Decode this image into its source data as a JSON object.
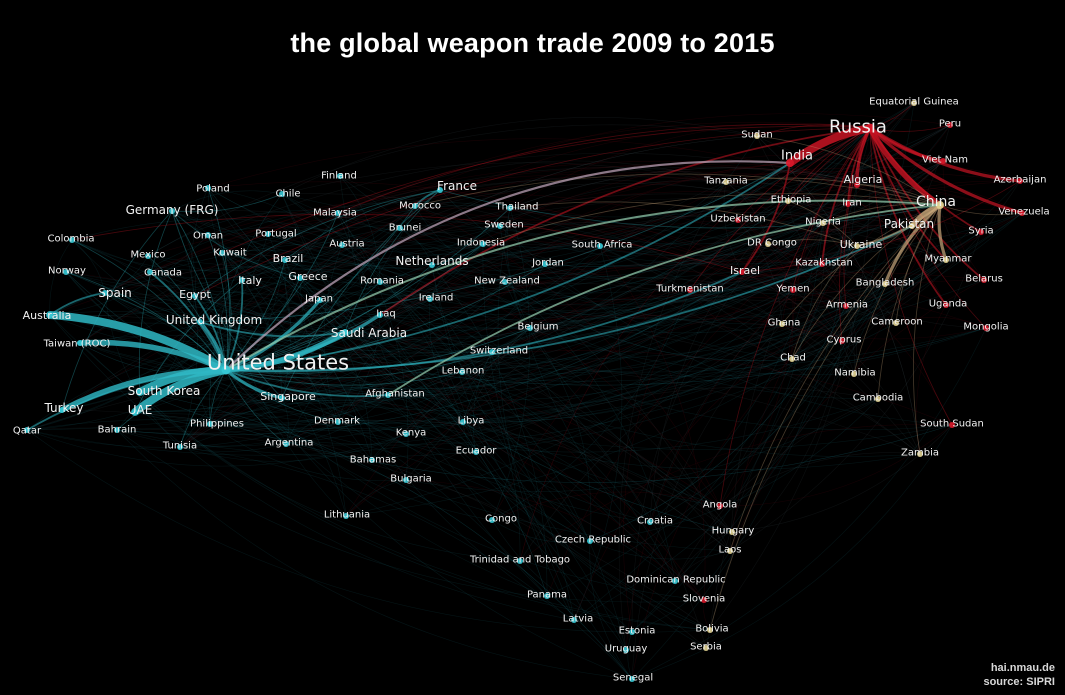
{
  "title": "the global weapon trade 2009 to 2015",
  "credit": {
    "site": "hai.nmau.de",
    "source": "source: SIPRI"
  },
  "colors": {
    "us_group": "#36c9d6",
    "russia_group": "#d8182a",
    "china_group": "#e2d391",
    "edge_us": "#2fb8c4",
    "edge_russia": "#c81423",
    "edge_china": "#c9a77a",
    "edge_faint": "#6a8a96"
  },
  "countries": [
    {
      "name": "United States",
      "group": "us",
      "weight": 5
    },
    {
      "name": "Russia",
      "group": "ru",
      "weight": 5
    },
    {
      "name": "China",
      "group": "cn",
      "weight": 4
    },
    {
      "name": "India",
      "group": "ru",
      "weight": 4
    },
    {
      "name": "France",
      "group": "us",
      "weight": 3
    },
    {
      "name": "Germany (FRG)",
      "group": "us",
      "weight": 3
    },
    {
      "name": "United Kingdom",
      "group": "us",
      "weight": 3
    },
    {
      "name": "Saudi Arabia",
      "group": "us",
      "weight": 3
    },
    {
      "name": "South Korea",
      "group": "us",
      "weight": 3
    },
    {
      "name": "Australia",
      "group": "us",
      "weight": 3
    },
    {
      "name": "Netherlands",
      "group": "us",
      "weight": 3
    },
    {
      "name": "Spain",
      "group": "us",
      "weight": 3
    },
    {
      "name": "Turkey",
      "group": "us",
      "weight": 3
    },
    {
      "name": "UAE",
      "group": "us",
      "weight": 3
    },
    {
      "name": "Singapore",
      "group": "us",
      "weight": 3
    },
    {
      "name": "Pakistan",
      "group": "cn",
      "weight": 3
    },
    {
      "name": "Algeria",
      "group": "ru",
      "weight": 3
    },
    {
      "name": "Ukraine",
      "group": "cn",
      "weight": 3
    },
    {
      "name": "Taiwan (ROC)",
      "group": "us",
      "weight": 2
    },
    {
      "name": "Italy",
      "group": "us",
      "weight": 2
    },
    {
      "name": "Egypt",
      "group": "us",
      "weight": 2
    },
    {
      "name": "Canada",
      "group": "us",
      "weight": 2
    },
    {
      "name": "Mexico",
      "group": "us",
      "weight": 2
    },
    {
      "name": "Oman",
      "group": "us",
      "weight": 2
    },
    {
      "name": "Kuwait",
      "group": "us",
      "weight": 2
    },
    {
      "name": "Brazil",
      "group": "us",
      "weight": 2
    },
    {
      "name": "Greece",
      "group": "us",
      "weight": 2
    },
    {
      "name": "Japan",
      "group": "us",
      "weight": 2
    },
    {
      "name": "Iraq",
      "group": "us",
      "weight": 2
    },
    {
      "name": "Poland",
      "group": "us",
      "weight": 2
    },
    {
      "name": "Chile",
      "group": "us",
      "weight": 2
    },
    {
      "name": "Finland",
      "group": "us",
      "weight": 2
    },
    {
      "name": "Malaysia",
      "group": "us",
      "weight": 2
    },
    {
      "name": "Morocco",
      "group": "us",
      "weight": 2
    },
    {
      "name": "Brunei",
      "group": "us",
      "weight": 2
    },
    {
      "name": "Portugal",
      "group": "us",
      "weight": 2
    },
    {
      "name": "Austria",
      "group": "us",
      "weight": 2
    },
    {
      "name": "Thailand",
      "group": "us",
      "weight": 2
    },
    {
      "name": "Sweden",
      "group": "us",
      "weight": 2
    },
    {
      "name": "Indonesia",
      "group": "us",
      "weight": 2
    },
    {
      "name": "South Africa",
      "group": "us",
      "weight": 2
    },
    {
      "name": "Jordan",
      "group": "us",
      "weight": 2
    },
    {
      "name": "New Zealand",
      "group": "us",
      "weight": 2
    },
    {
      "name": "Romania",
      "group": "us",
      "weight": 2
    },
    {
      "name": "Ireland",
      "group": "us",
      "weight": 2
    },
    {
      "name": "Belgium",
      "group": "us",
      "weight": 2
    },
    {
      "name": "Switzerland",
      "group": "us",
      "weight": 2
    },
    {
      "name": "Lebanon",
      "group": "us",
      "weight": 2
    },
    {
      "name": "Afghanistan",
      "group": "us",
      "weight": 2
    },
    {
      "name": "Colombia",
      "group": "us",
      "weight": 2
    },
    {
      "name": "Norway",
      "group": "us",
      "weight": 2
    },
    {
      "name": "Qatar",
      "group": "us",
      "weight": 2
    },
    {
      "name": "Bahrain",
      "group": "us",
      "weight": 2
    },
    {
      "name": "Philippines",
      "group": "us",
      "weight": 2
    },
    {
      "name": "Tunisia",
      "group": "us",
      "weight": 2
    },
    {
      "name": "Argentina",
      "group": "us",
      "weight": 2
    },
    {
      "name": "Denmark",
      "group": "us",
      "weight": 2
    },
    {
      "name": "Bahamas",
      "group": "us",
      "weight": 2
    },
    {
      "name": "Kenya",
      "group": "us",
      "weight": 2
    },
    {
      "name": "Libya",
      "group": "us",
      "weight": 2
    },
    {
      "name": "Ecuador",
      "group": "us",
      "weight": 2
    },
    {
      "name": "Bulgaria",
      "group": "us",
      "weight": 2
    },
    {
      "name": "Lithuania",
      "group": "us",
      "weight": 2
    },
    {
      "name": "Congo",
      "group": "us",
      "weight": 2
    },
    {
      "name": "Czech Republic",
      "group": "us",
      "weight": 2
    },
    {
      "name": "Croatia",
      "group": "us",
      "weight": 2
    },
    {
      "name": "Trinidad and Tobago",
      "group": "us",
      "weight": 2
    },
    {
      "name": "Dominican Republic",
      "group": "us",
      "weight": 2
    },
    {
      "name": "Panama",
      "group": "us",
      "weight": 2
    },
    {
      "name": "Latvia",
      "group": "us",
      "weight": 2
    },
    {
      "name": "Estonia",
      "group": "us",
      "weight": 2
    },
    {
      "name": "Uruguay",
      "group": "us",
      "weight": 2
    },
    {
      "name": "Senegal",
      "group": "us",
      "weight": 2
    },
    {
      "name": "Sudan",
      "group": "cn",
      "weight": 2
    },
    {
      "name": "Tanzania",
      "group": "cn",
      "weight": 2
    },
    {
      "name": "Ethiopia",
      "group": "cn",
      "weight": 2
    },
    {
      "name": "Uzbekistan",
      "group": "ru",
      "weight": 2
    },
    {
      "name": "Nigeria",
      "group": "cn",
      "weight": 2
    },
    {
      "name": "DR Congo",
      "group": "cn",
      "weight": 2
    },
    {
      "name": "Israel",
      "group": "ru",
      "weight": 2
    },
    {
      "name": "Iran",
      "group": "ru",
      "weight": 2
    },
    {
      "name": "Kazakhstan",
      "group": "ru",
      "weight": 2
    },
    {
      "name": "Turkmenistan",
      "group": "ru",
      "weight": 2
    },
    {
      "name": "Yemen",
      "group": "ru",
      "weight": 2
    },
    {
      "name": "Armenia",
      "group": "ru",
      "weight": 2
    },
    {
      "name": "Ghana",
      "group": "cn",
      "weight": 2
    },
    {
      "name": "Chad",
      "group": "cn",
      "weight": 2
    },
    {
      "name": "Cyprus",
      "group": "ru",
      "weight": 2
    },
    {
      "name": "Namibia",
      "group": "cn",
      "weight": 2
    },
    {
      "name": "Cambodia",
      "group": "cn",
      "weight": 2
    },
    {
      "name": "Cameroon",
      "group": "cn",
      "weight": 2
    },
    {
      "name": "Bangladesh",
      "group": "cn",
      "weight": 2
    },
    {
      "name": "Myanmar",
      "group": "cn",
      "weight": 2
    },
    {
      "name": "Uganda",
      "group": "ru",
      "weight": 2
    },
    {
      "name": "Belarus",
      "group": "ru",
      "weight": 2
    },
    {
      "name": "Mongolia",
      "group": "ru",
      "weight": 2
    },
    {
      "name": "South Sudan",
      "group": "ru",
      "weight": 2
    },
    {
      "name": "Zambia",
      "group": "cn",
      "weight": 2
    },
    {
      "name": "Syria",
      "group": "ru",
      "weight": 2
    },
    {
      "name": "Venezuela",
      "group": "ru",
      "weight": 2
    },
    {
      "name": "Azerbaijan",
      "group": "ru",
      "weight": 2
    },
    {
      "name": "Viet Nam",
      "group": "ru",
      "weight": 2
    },
    {
      "name": "Peru",
      "group": "ru",
      "weight": 2
    },
    {
      "name": "Equatorial Guinea",
      "group": "cn",
      "weight": 2
    },
    {
      "name": "Angola",
      "group": "ru",
      "weight": 2
    },
    {
      "name": "Hungary",
      "group": "cn",
      "weight": 2
    },
    {
      "name": "Laos",
      "group": "cn",
      "weight": 2
    },
    {
      "name": "Slovenia",
      "group": "ru",
      "weight": 2
    },
    {
      "name": "Bolivia",
      "group": "cn",
      "weight": 2
    },
    {
      "name": "Serbia",
      "group": "cn",
      "weight": 2
    }
  ],
  "trade_links": [
    {
      "from": "United States",
      "to": "Australia",
      "strength": 5
    },
    {
      "from": "United States",
      "to": "Taiwan (ROC)",
      "strength": 4
    },
    {
      "from": "United States",
      "to": "South Korea",
      "strength": 5
    },
    {
      "from": "United States",
      "to": "UAE",
      "strength": 5
    },
    {
      "from": "United States",
      "to": "Turkey",
      "strength": 4
    },
    {
      "from": "United States",
      "to": "Saudi Arabia",
      "strength": 4
    },
    {
      "from": "United States",
      "to": "Iraq",
      "strength": 3
    },
    {
      "from": "United States",
      "to": "United Kingdom",
      "strength": 3
    },
    {
      "from": "United States",
      "to": "Singapore",
      "strength": 3
    },
    {
      "from": "United States",
      "to": "Japan",
      "strength": 3
    },
    {
      "from": "United States",
      "to": "Egypt",
      "strength": 2
    },
    {
      "from": "United States",
      "to": "Canada",
      "strength": 2
    },
    {
      "from": "United States",
      "to": "Italy",
      "strength": 2
    },
    {
      "from": "United States",
      "to": "Qatar",
      "strength": 2
    },
    {
      "from": "United States",
      "to": "India",
      "strength": 2
    },
    {
      "from": "United States",
      "to": "Afghanistan",
      "strength": 2
    },
    {
      "from": "United States",
      "to": "Israel",
      "strength": 2
    },
    {
      "from": "United States",
      "to": "Pakistan",
      "strength": 2
    },
    {
      "from": "United States",
      "to": "Morocco",
      "strength": 1
    },
    {
      "from": "United States",
      "to": "Kuwait",
      "strength": 1
    },
    {
      "from": "United States",
      "to": "Oman",
      "strength": 1
    },
    {
      "from": "United States",
      "to": "Mexico",
      "strength": 1
    },
    {
      "from": "United States",
      "to": "Spain",
      "strength": 1
    },
    {
      "from": "United States",
      "to": "Bahrain",
      "strength": 1
    },
    {
      "from": "United States",
      "to": "Philippines",
      "strength": 1
    },
    {
      "from": "United States",
      "to": "Tunisia",
      "strength": 1
    },
    {
      "from": "United States",
      "to": "Colombia",
      "strength": 1
    },
    {
      "from": "United States",
      "to": "Norway",
      "strength": 1
    },
    {
      "from": "United States",
      "to": "Netherlands",
      "strength": 1
    },
    {
      "from": "United States",
      "to": "Greece",
      "strength": 1
    },
    {
      "from": "United States",
      "to": "Brazil",
      "strength": 1
    },
    {
      "from": "United States",
      "to": "Indonesia",
      "strength": 1
    },
    {
      "from": "United States",
      "to": "Thailand",
      "strength": 1
    },
    {
      "from": "United States",
      "to": "Germany (FRG)",
      "strength": 1
    },
    {
      "from": "United States",
      "to": "Poland",
      "strength": 1
    },
    {
      "from": "United States",
      "to": "Belgium",
      "strength": 1
    },
    {
      "from": "United States",
      "to": "Lebanon",
      "strength": 1
    },
    {
      "from": "United States",
      "to": "Denmark",
      "strength": 1
    },
    {
      "from": "United States",
      "to": "Argentina",
      "strength": 1
    },
    {
      "from": "United States",
      "to": "Jordan",
      "strength": 1
    },
    {
      "from": "United States",
      "to": "Malaysia",
      "strength": 1
    },
    {
      "from": "United States",
      "to": "Romania",
      "strength": 1
    },
    {
      "from": "United States",
      "to": "Switzerland",
      "strength": 1
    },
    {
      "from": "France",
      "to": "Morocco",
      "strength": 2
    },
    {
      "from": "France",
      "to": "Egypt",
      "strength": 1
    },
    {
      "from": "France",
      "to": "Singapore",
      "strength": 1
    },
    {
      "from": "France",
      "to": "Brazil",
      "strength": 1
    },
    {
      "from": "France",
      "to": "China",
      "strength": 1
    },
    {
      "from": "France",
      "to": "Saudi Arabia",
      "strength": 1
    },
    {
      "from": "Germany (FRG)",
      "to": "Greece",
      "strength": 1
    },
    {
      "from": "Germany (FRG)",
      "to": "South Korea",
      "strength": 1
    },
    {
      "from": "Germany (FRG)",
      "to": "Turkey",
      "strength": 1
    },
    {
      "from": "Germany (FRG)",
      "to": "Singapore",
      "strength": 1
    },
    {
      "from": "Germany (FRG)",
      "to": "Chile",
      "strength": 1
    },
    {
      "from": "United Kingdom",
      "to": "Saudi Arabia",
      "strength": 2
    },
    {
      "from": "United Kingdom",
      "to": "India",
      "strength": 1
    },
    {
      "from": "Spain",
      "to": "Australia",
      "strength": 2
    },
    {
      "from": "Netherlands",
      "to": "Indonesia",
      "strength": 1
    },
    {
      "from": "Italy",
      "to": "UAE",
      "strength": 1
    },
    {
      "from": "Russia",
      "to": "India",
      "strength": 5
    },
    {
      "from": "Russia",
      "to": "China",
      "strength": 4
    },
    {
      "from": "Russia",
      "to": "Algeria",
      "strength": 3
    },
    {
      "from": "Russia",
      "to": "Viet Nam",
      "strength": 3
    },
    {
      "from": "Russia",
      "to": "Venezuela",
      "strength": 3
    },
    {
      "from": "Russia",
      "to": "Azerbaijan",
      "strength": 3
    },
    {
      "from": "Russia",
      "to": "Syria",
      "strength": 2
    },
    {
      "from": "Russia",
      "to": "Iran",
      "strength": 2
    },
    {
      "from": "Russia",
      "to": "Kazakhstan",
      "strength": 2
    },
    {
      "from": "Russia",
      "to": "Belarus",
      "strength": 2
    },
    {
      "from": "Russia",
      "to": "Uganda",
      "strength": 2
    },
    {
      "from": "Russia",
      "to": "Myanmar",
      "strength": 2
    },
    {
      "from": "Russia",
      "to": "Iraq",
      "strength": 2
    },
    {
      "from": "Russia",
      "to": "Peru",
      "strength": 1
    },
    {
      "from": "Russia",
      "to": "Yemen",
      "strength": 1
    },
    {
      "from": "Russia",
      "to": "Israel",
      "strength": 1
    },
    {
      "from": "Russia",
      "to": "Turkmenistan",
      "strength": 1
    },
    {
      "from": "Russia",
      "to": "Armenia",
      "strength": 1
    },
    {
      "from": "Russia",
      "to": "Uzbekistan",
      "strength": 1
    },
    {
      "from": "Russia",
      "to": "Mongolia",
      "strength": 1
    },
    {
      "from": "Russia",
      "to": "Angola",
      "strength": 1
    },
    {
      "from": "Russia",
      "to": "Sudan",
      "strength": 1
    },
    {
      "from": "Russia",
      "to": "Cyprus",
      "strength": 1
    },
    {
      "from": "Russia",
      "to": "South Sudan",
      "strength": 1
    },
    {
      "from": "Russia",
      "to": "Ethiopia",
      "strength": 1
    },
    {
      "from": "Russia",
      "to": "Equatorial Guinea",
      "strength": 1
    },
    {
      "from": "Russia",
      "to": "Kuwait",
      "strength": 1
    },
    {
      "from": "Russia",
      "to": "Egypt",
      "strength": 1
    },
    {
      "from": "Russia",
      "to": "Malaysia",
      "strength": 1
    },
    {
      "from": "China",
      "to": "Pakistan",
      "strength": 4
    },
    {
      "from": "China",
      "to": "Bangladesh",
      "strength": 3
    },
    {
      "from": "China",
      "to": "Myanmar",
      "strength": 3
    },
    {
      "from": "China",
      "to": "Algeria",
      "strength": 1
    },
    {
      "from": "China",
      "to": "Nigeria",
      "strength": 1
    },
    {
      "from": "China",
      "to": "Tanzania",
      "strength": 1
    },
    {
      "from": "China",
      "to": "Sudan",
      "strength": 1
    },
    {
      "from": "China",
      "to": "Cameroon",
      "strength": 1
    },
    {
      "from": "China",
      "to": "Namibia",
      "strength": 1
    },
    {
      "from": "China",
      "to": "Ghana",
      "strength": 1
    },
    {
      "from": "China",
      "to": "Chad",
      "strength": 1
    },
    {
      "from": "China",
      "to": "Zambia",
      "strength": 1
    },
    {
      "from": "China",
      "to": "Cambodia",
      "strength": 1
    },
    {
      "from": "China",
      "to": "Laos",
      "strength": 1
    },
    {
      "from": "China",
      "to": "Bolivia",
      "strength": 1
    },
    {
      "from": "China",
      "to": "Indonesia",
      "strength": 1
    },
    {
      "from": "China",
      "to": "Venezuela",
      "strength": 1
    },
    {
      "from": "China",
      "to": "Morocco",
      "strength": 1
    },
    {
      "from": "Ukraine",
      "to": "China",
      "strength": 2
    },
    {
      "from": "Ukraine",
      "to": "Ethiopia",
      "strength": 1
    },
    {
      "from": "Ukraine",
      "to": "DR Congo",
      "strength": 1
    },
    {
      "from": "Ukraine",
      "to": "Chad",
      "strength": 1
    },
    {
      "from": "Ukraine",
      "to": "Thailand",
      "strength": 1
    },
    {
      "from": "Ukraine",
      "to": "Pakistan",
      "strength": 1
    },
    {
      "from": "Israel",
      "to": "India",
      "strength": 2
    },
    {
      "from": "Israel",
      "to": "Azerbaijan",
      "strength": 1
    },
    {
      "from": "Israel",
      "to": "Colombia",
      "strength": 1
    }
  ]
}
